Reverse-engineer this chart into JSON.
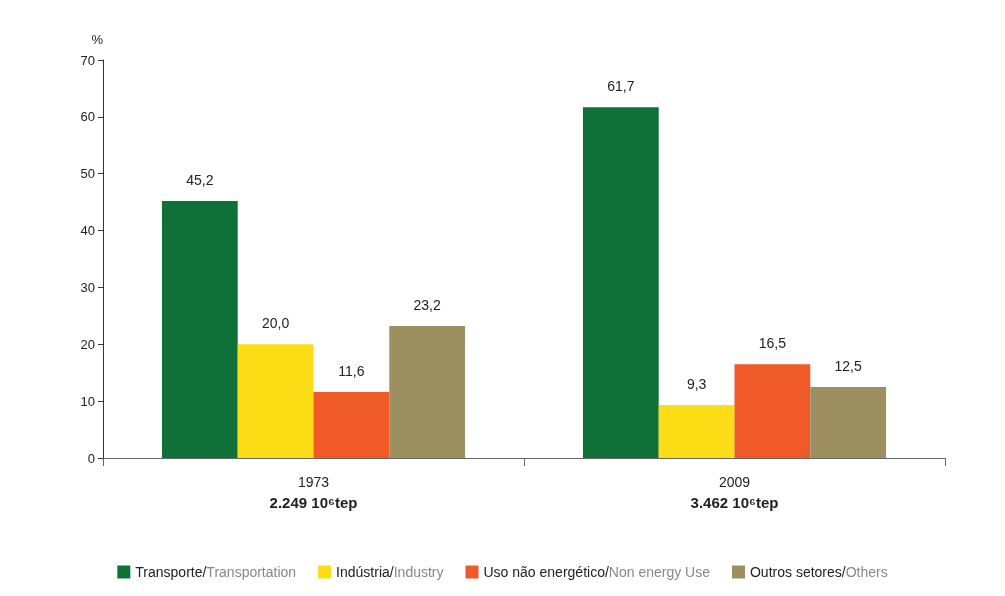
{
  "chart_data": {
    "type": "bar",
    "ylabel": "%",
    "categories": [
      "1973\n2.249 10⁶tep",
      "2009\n3.462 10⁶tep"
    ],
    "series": [
      {
        "name": "Transporte/Transportation",
        "color": "#0f7038",
        "values": [
          45.2,
          61.7
        ],
        "value_labels": [
          "45,2",
          "61,7"
        ]
      },
      {
        "name": "Indústria/Industry",
        "color": "#fcdc14",
        "values": [
          20.0,
          9.3
        ],
        "value_labels": [
          "20,0",
          "9,3"
        ]
      },
      {
        "name": "Uso não energético/Non energy Use",
        "color": "#f05a28",
        "values": [
          11.6,
          16.5
        ],
        "value_labels": [
          "11,6",
          "16,5"
        ]
      },
      {
        "name": "Outros setores/Others",
        "color": "#9c9060",
        "values": [
          23.2,
          12.5
        ],
        "value_labels": [
          "23,2",
          "12,5"
        ]
      }
    ],
    "ylim": [
      0,
      70
    ],
    "yticks": [
      0,
      10,
      20,
      30,
      40,
      50,
      60,
      70
    ],
    "grid": false,
    "legend": "bottom"
  }
}
